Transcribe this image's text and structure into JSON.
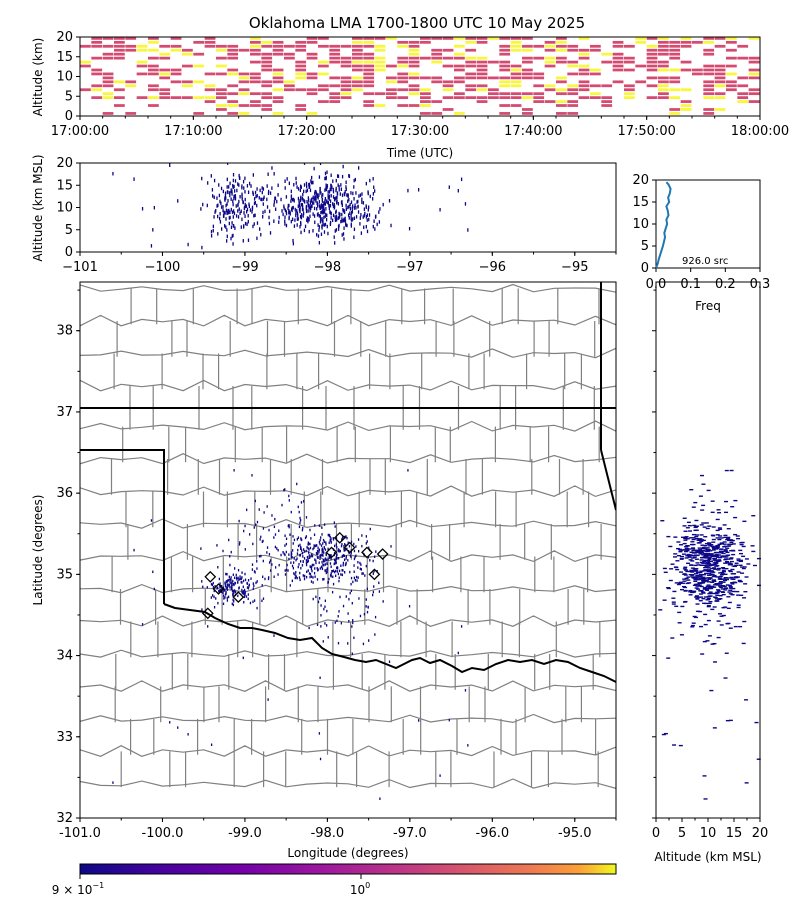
{
  "title": "Oklahoma LMA 1700-1800 UTC 10 May 2025",
  "colors": {
    "raster_low": "#d44a70",
    "raster_high": "#f8f73a",
    "points": "#0d0887",
    "hist_line": "#1f77b4",
    "marker_edge": "#000000",
    "county_line": "#808080",
    "state_line": "#000000"
  },
  "chart_data": [
    {
      "type": "heatmap",
      "name": "time-height",
      "ylabel": "Altitude (km)",
      "xlabel": "Time (UTC)",
      "xticks": [
        "17:00:00",
        "17:10:00",
        "17:20:00",
        "17:30:00",
        "17:40:00",
        "17:50:00",
        "18:00:00"
      ],
      "yticks": [
        "0",
        "5",
        "10",
        "15",
        "20"
      ],
      "xlim_minutes": [
        0,
        60
      ],
      "ylim": [
        0,
        20
      ],
      "cell_minutes": 1,
      "cell_km": 1
    },
    {
      "type": "scatter",
      "name": "lon-alt",
      "ylabel": "Altitude (km MSL)",
      "xticks": [
        "−101",
        "−100",
        "−99",
        "−98",
        "−97",
        "−96",
        "−95"
      ],
      "yticks": [
        "0",
        "5",
        "10",
        "15",
        "20"
      ],
      "xlim": [
        -101,
        -94.5
      ],
      "ylim": [
        0,
        20
      ]
    },
    {
      "type": "line",
      "name": "altitude-histogram",
      "xlabel": "Freq",
      "annotation": "926.0 src",
      "xticks": [
        "0.0",
        "0.1",
        "0.2",
        "0.3"
      ],
      "yticks": [
        "0",
        "5",
        "10",
        "15",
        "20"
      ],
      "xlim": [
        0,
        0.3
      ],
      "ylim": [
        0,
        20
      ],
      "x": [
        0.0,
        0.005,
        0.008,
        0.012,
        0.016,
        0.02,
        0.023,
        0.026,
        0.024,
        0.028,
        0.032,
        0.03,
        0.036,
        0.034,
        0.03,
        0.038,
        0.035,
        0.04,
        0.042,
        0.036,
        0.03
      ],
      "y": [
        0,
        1,
        2,
        3,
        4,
        5,
        6,
        7,
        8,
        9,
        10,
        11,
        12,
        13,
        14,
        15,
        16,
        17,
        18,
        19,
        19.5
      ]
    },
    {
      "type": "scatter",
      "name": "plan-view",
      "xlabel": "Longitude (degrees)",
      "ylabel": "Latitude (degrees)",
      "xticks": [
        "-101.0",
        "-100.0",
        "-99.0",
        "-98.0",
        "-97.0",
        "-96.0",
        "-95.0"
      ],
      "yticks": [
        "32",
        "33",
        "34",
        "35",
        "36",
        "37",
        "38"
      ],
      "xlim": [
        -101,
        -94.5
      ],
      "ylim": [
        32,
        38.6
      ],
      "station_markers": [
        [
          -99.42,
          34.97
        ],
        [
          -99.32,
          34.82
        ],
        [
          -99.08,
          34.72
        ],
        [
          -99.45,
          34.52
        ],
        [
          -97.85,
          35.45
        ],
        [
          -97.73,
          35.33
        ],
        [
          -97.95,
          35.27
        ],
        [
          -97.52,
          35.27
        ],
        [
          -97.33,
          35.25
        ],
        [
          -97.43,
          35.0
        ]
      ]
    },
    {
      "type": "scatter",
      "name": "alt-lat",
      "xlabel": "Altitude (km MSL)",
      "xticks": [
        "0",
        "5",
        "10",
        "15",
        "20"
      ],
      "xlim": [
        0,
        20
      ]
    },
    {
      "type": "colorbar",
      "name": "colorbar",
      "colormap": "plasma",
      "ticks": [
        "9 × 10",
        "−1",
        "10",
        "0"
      ]
    }
  ]
}
